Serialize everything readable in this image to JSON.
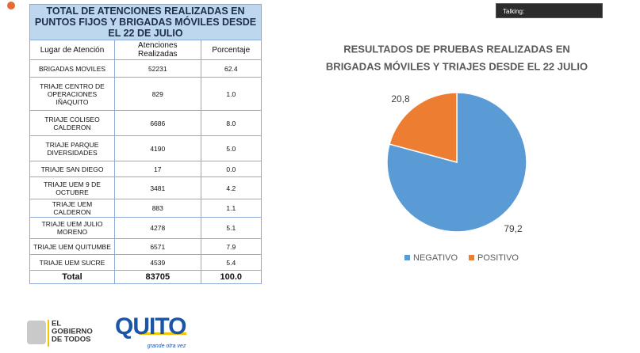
{
  "header": {
    "talking": "Talking:"
  },
  "table": {
    "title": "TOTAL DE ATENCIONES REALIZADAS EN PUNTOS FIJOS Y BRIGADAS MÓVILES DESDE EL 22 DE JULIO",
    "columns": [
      "Lugar de Atención",
      "Atenciones Realizadas",
      "Porcentaje"
    ],
    "rows": [
      [
        "BRIGADAS MOVILES",
        "52231",
        "62.4"
      ],
      [
        "TRIAJE CENTRO DE OPERACIONES IÑAQUITO",
        "829",
        "1.0"
      ],
      [
        "TRIAJE COLISEO CALDERON",
        "6686",
        "8.0"
      ],
      [
        "TRIAJE PARQUE DIVERSIDADES",
        "4190",
        "5.0"
      ],
      [
        "TRIAJE SAN DIEGO",
        "17",
        "0.0"
      ],
      [
        "TRIAJE UEM 9 DE OCTUBRE",
        "3481",
        "4.2"
      ],
      [
        "TRIAJE UEM CALDERON",
        "883",
        "1.1"
      ],
      [
        "TRIAJE UEM JULIO MORENO",
        "4278",
        "5.1"
      ],
      [
        "TRIAJE UEM QUITUMBE",
        "6571",
        "7.9"
      ],
      [
        "TRIAJE UEM SUCRE",
        "4539",
        "5.4"
      ]
    ],
    "total": [
      "Total",
      "83705",
      "100.0"
    ]
  },
  "chart_data": {
    "type": "pie",
    "title": [
      "RESULTADOS DE PRUEBAS REALIZADAS EN",
      "BRIGADAS MÓVILES Y TRIAJES DESDE EL 22 JULIO"
    ],
    "categories": [
      "NEGATIVO",
      "POSITIVO"
    ],
    "values": [
      79.2,
      20.8
    ],
    "value_labels": [
      "79,2",
      "20,8"
    ],
    "colors": [
      "#5b9bd5",
      "#ed7d31"
    ],
    "legend": "bottom"
  },
  "logos": {
    "government": [
      "EL",
      "GOBIERNO",
      "DE TODOS"
    ],
    "city": "QUITO",
    "slogan": "grande otra vez"
  }
}
